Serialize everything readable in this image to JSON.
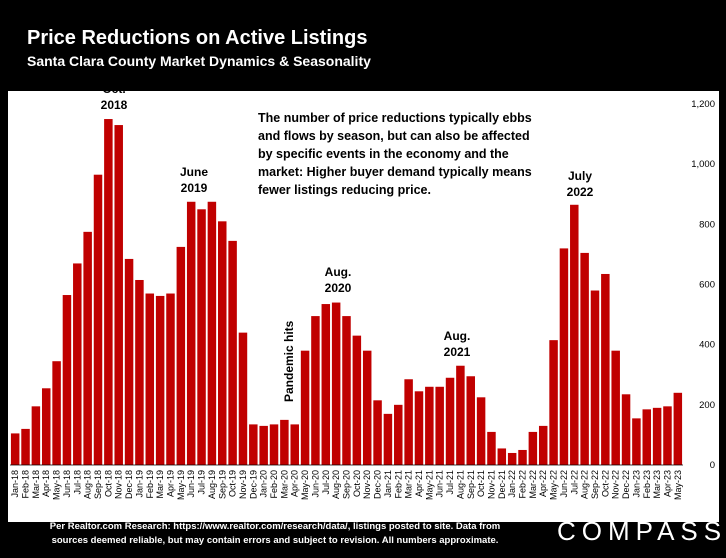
{
  "title": "Price Reductions on Active Listings",
  "subtitle": "Santa Clara County Market Dynamics & Seasonality",
  "note": "The number of price reductions typically ebbs and flows by season, but can also be affected by specific events in the economy and the market: Higher buyer demand typically means fewer listings reducing price.",
  "annotations": {
    "oct2018_a": "Oct.",
    "oct2018_b": "2018",
    "jun2019_a": "June",
    "jun2019_b": "2019",
    "aug2020_a": "Aug.",
    "aug2020_b": "2020",
    "aug2021_a": "Aug.",
    "aug2021_b": "2021",
    "jul2022_a": "July",
    "jul2022_b": "2022",
    "pandemic": "Pandemic hits"
  },
  "footer_line1": "Per Realtor.com Research: https://www.realtor.com/research/data/, listings posted to site. Data from",
  "footer_line2": "sources deemed reliable, but may contain errors and subject to revision. All numbers approximate.",
  "logo": "COMPASS",
  "colors": {
    "bar": "#c00000",
    "background": "#000000",
    "plot": "#ffffff"
  },
  "chart_data": {
    "type": "bar",
    "ylim": [
      0,
      1200
    ],
    "yticks": [
      "0",
      "200",
      "400",
      "600",
      "800",
      "1,000",
      "1,200"
    ],
    "categories": [
      "Jan-18",
      "Feb-18",
      "Mar-18",
      "Apr-18",
      "May-18",
      "Jun-18",
      "Jul-18",
      "Aug-18",
      "Sep-18",
      "Oct-18",
      "Nov-18",
      "Dec-18",
      "Jan-19",
      "Feb-19",
      "Mar-19",
      "Apr-19",
      "May-19",
      "Jun-19",
      "Jul-19",
      "Aug-19",
      "Sep-19",
      "Oct-19",
      "Nov-19",
      "Dec-19",
      "Jan-20",
      "Feb-20",
      "Mar-20",
      "Apr-20",
      "May-20",
      "Jun-20",
      "Jul-20",
      "Aug-20",
      "Sep-20",
      "Oct-20",
      "Nov-20",
      "Dec-20",
      "Jan-21",
      "Feb-21",
      "Mar-21",
      "Apr-21",
      "May-21",
      "Jun-21",
      "Jul-21",
      "Aug-21",
      "Sep-21",
      "Oct-21",
      "Nov-21",
      "Dec-21",
      "Jan-22",
      "Feb-22",
      "Mar-22",
      "Apr-22",
      "May-22",
      "Jun-22",
      "Jul-22",
      "Aug-22",
      "Sep-22",
      "Oct-22",
      "Nov-22",
      "Dec-22",
      "Jan-23",
      "Feb-23",
      "Mar-23",
      "Apr-23",
      "May-23"
    ],
    "values": [
      105,
      120,
      195,
      255,
      345,
      565,
      670,
      775,
      965,
      1150,
      1130,
      685,
      615,
      570,
      562,
      570,
      725,
      875,
      850,
      875,
      810,
      745,
      440,
      135,
      130,
      135,
      150,
      135,
      380,
      495,
      535,
      540,
      495,
      430,
      380,
      215,
      170,
      200,
      285,
      245,
      260,
      260,
      290,
      330,
      295,
      225,
      110,
      55,
      40,
      50,
      110,
      130,
      415,
      720,
      865,
      705,
      580,
      635,
      380,
      235,
      155,
      185,
      190,
      195,
      240
    ],
    "legend": "none",
    "grid": false
  }
}
